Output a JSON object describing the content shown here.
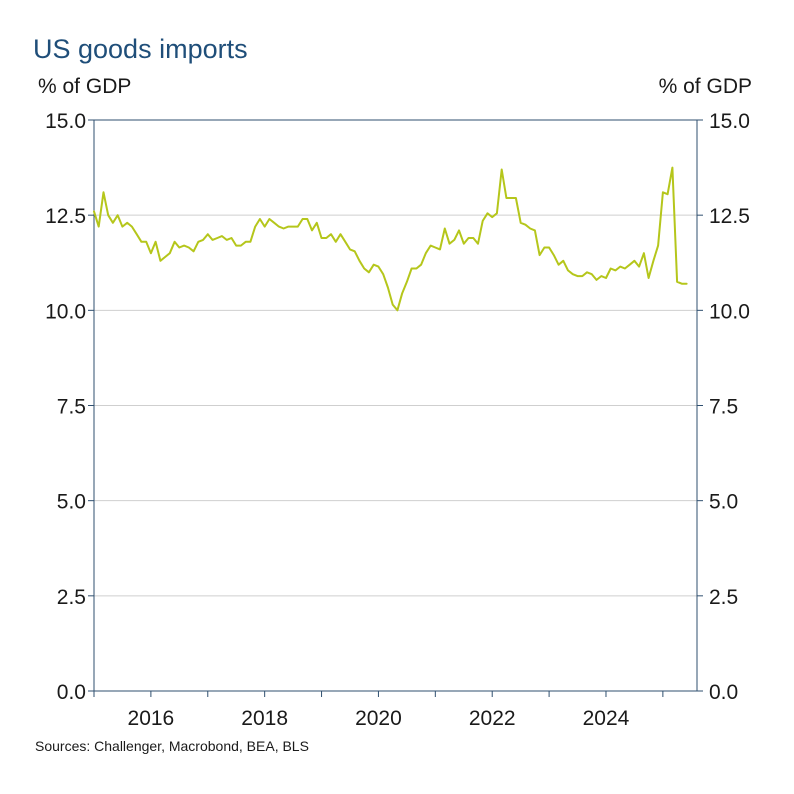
{
  "chart_data": {
    "type": "line",
    "title": "US goods imports",
    "ylabel_left": "% of GDP",
    "ylabel_right": "% of GDP",
    "xlabel": "",
    "ylim": [
      0,
      15
    ],
    "xlim": [
      2015.0,
      2025.6
    ],
    "yticks": [
      "0.0",
      "2.5",
      "5.0",
      "7.5",
      "10.0",
      "12.5",
      "15.0"
    ],
    "xticks": [
      "2016",
      "2018",
      "2020",
      "2022",
      "2024"
    ],
    "grid": true,
    "line_color": "#b5c61b",
    "series": [
      {
        "name": "US goods imports",
        "x": [
          2015.0,
          2015.083,
          2015.167,
          2015.25,
          2015.333,
          2015.417,
          2015.5,
          2015.583,
          2015.667,
          2015.75,
          2015.833,
          2015.917,
          2016.0,
          2016.083,
          2016.167,
          2016.25,
          2016.333,
          2016.417,
          2016.5,
          2016.583,
          2016.667,
          2016.75,
          2016.833,
          2016.917,
          2017.0,
          2017.083,
          2017.167,
          2017.25,
          2017.333,
          2017.417,
          2017.5,
          2017.583,
          2017.667,
          2017.75,
          2017.833,
          2017.917,
          2018.0,
          2018.083,
          2018.167,
          2018.25,
          2018.333,
          2018.417,
          2018.5,
          2018.583,
          2018.667,
          2018.75,
          2018.833,
          2018.917,
          2019.0,
          2019.083,
          2019.167,
          2019.25,
          2019.333,
          2019.417,
          2019.5,
          2019.583,
          2019.667,
          2019.75,
          2019.833,
          2019.917,
          2020.0,
          2020.083,
          2020.167,
          2020.25,
          2020.333,
          2020.417,
          2020.5,
          2020.583,
          2020.667,
          2020.75,
          2020.833,
          2020.917,
          2021.0,
          2021.083,
          2021.167,
          2021.25,
          2021.333,
          2021.417,
          2021.5,
          2021.583,
          2021.667,
          2021.75,
          2021.833,
          2021.917,
          2022.0,
          2022.083,
          2022.167,
          2022.25,
          2022.333,
          2022.417,
          2022.5,
          2022.583,
          2022.667,
          2022.75,
          2022.833,
          2022.917,
          2023.0,
          2023.083,
          2023.167,
          2023.25,
          2023.333,
          2023.417,
          2023.5,
          2023.583,
          2023.667,
          2023.75,
          2023.833,
          2023.917,
          2024.0,
          2024.083,
          2024.167,
          2024.25,
          2024.333,
          2024.417,
          2024.5,
          2024.583,
          2024.667,
          2024.75,
          2024.833,
          2024.917,
          2025.0,
          2025.083,
          2025.167,
          2025.25,
          2025.333,
          2025.417
        ],
        "values": [
          12.6,
          12.2,
          13.1,
          12.5,
          12.3,
          12.5,
          12.2,
          12.3,
          12.2,
          12.0,
          11.8,
          11.8,
          11.5,
          11.8,
          11.3,
          11.4,
          11.5,
          11.8,
          11.65,
          11.7,
          11.65,
          11.55,
          11.8,
          11.85,
          12.0,
          11.85,
          11.9,
          11.95,
          11.85,
          11.9,
          11.7,
          11.7,
          11.8,
          11.8,
          12.2,
          12.4,
          12.2,
          12.4,
          12.3,
          12.2,
          12.15,
          12.2,
          12.2,
          12.2,
          12.4,
          12.4,
          12.1,
          12.3,
          11.9,
          11.9,
          12.0,
          11.8,
          12.0,
          11.8,
          11.6,
          11.55,
          11.3,
          11.1,
          11.0,
          11.2,
          11.15,
          10.95,
          10.6,
          10.15,
          10.0,
          10.45,
          10.75,
          11.1,
          11.1,
          11.2,
          11.5,
          11.7,
          11.65,
          11.6,
          12.15,
          11.75,
          11.85,
          12.1,
          11.75,
          11.9,
          11.9,
          11.75,
          12.35,
          12.55,
          12.45,
          12.55,
          13.7,
          12.95,
          12.95,
          12.95,
          12.3,
          12.25,
          12.15,
          12.1,
          11.45,
          11.65,
          11.65,
          11.45,
          11.2,
          11.3,
          11.05,
          10.95,
          10.9,
          10.9,
          11.0,
          10.95,
          10.8,
          10.9,
          10.85,
          11.1,
          11.05,
          11.15,
          11.1,
          11.2,
          11.3,
          11.15,
          11.5,
          10.85,
          11.3,
          11.7,
          13.1,
          13.05,
          13.75,
          10.75,
          10.7,
          10.7
        ]
      }
    ]
  },
  "sources": "Sources: Challenger, Macrobond, BEA, BLS"
}
